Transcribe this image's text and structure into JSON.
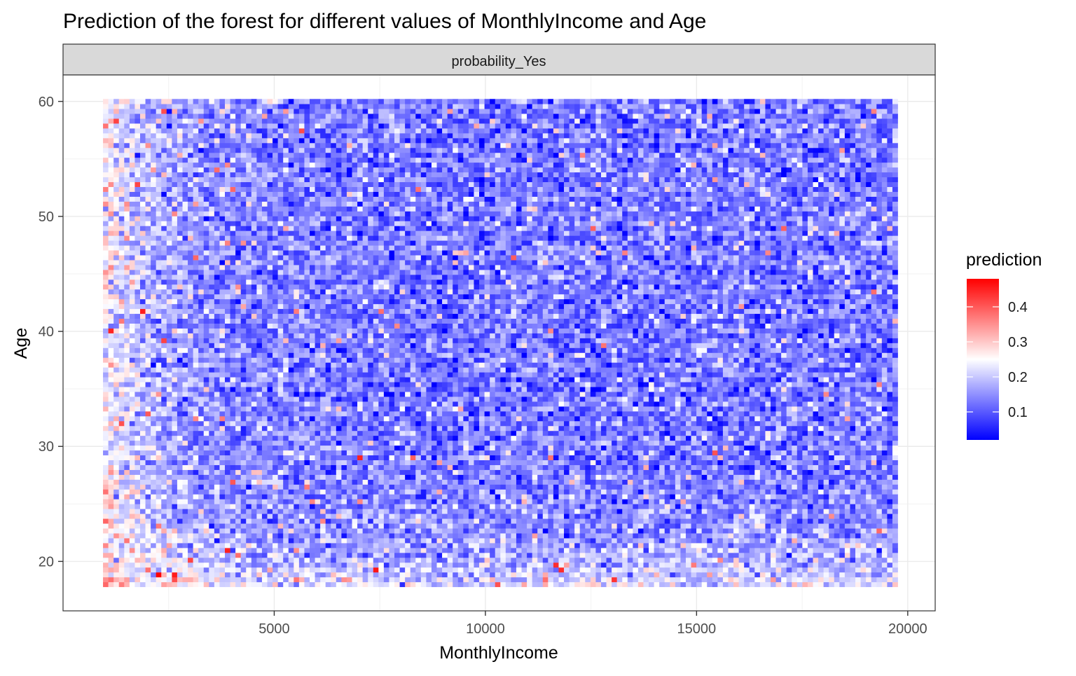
{
  "chart_data": {
    "type": "heatmap",
    "title": "Prediction of the forest for different values of MonthlyIncome and Age",
    "facet_label": "probability_Yes",
    "xlabel": "MonthlyIncome",
    "ylabel": "Age",
    "xlim": [
      0,
      20650
    ],
    "ylim": [
      15.7,
      62.3
    ],
    "x_ticks": [
      5000,
      10000,
      15000,
      20000
    ],
    "x_tick_labels": [
      "5000",
      "10000",
      "15000",
      "20000"
    ],
    "y_ticks": [
      20,
      30,
      40,
      50,
      60
    ],
    "y_tick_labels": [
      "20",
      "30",
      "40",
      "50",
      "60"
    ],
    "x_range": [
      1009,
      19700
    ],
    "y_range": [
      18,
      60
    ],
    "x_cells": 150,
    "y_cells": 100,
    "grid": true,
    "legend": {
      "title": "prediction",
      "position": "right",
      "scale_min": 0.02,
      "scale_max": 0.48,
      "ticks": [
        0.1,
        0.2,
        0.3,
        0.4
      ],
      "tick_labels": [
        "0.1",
        "0.2",
        "0.3",
        "0.4"
      ],
      "low_color": "#0000ff",
      "mid_color": "#ffffff",
      "high_color": "#ff0000",
      "midpoint": 0.25
    },
    "trend": {
      "description_values": "prediction is higher (0.25-0.35) at low MonthlyIncome (<3000) and at Age < 25; elsewhere mostly 0.08-0.18",
      "base": 0.13,
      "low_income_bonus": 0.12,
      "young_age_bonus": 0.09
    },
    "highlight_cells": [
      {
        "x": 7450,
        "y": 19.2,
        "value": 0.46
      },
      {
        "x": 11750,
        "y": 19.2,
        "value": 0.44
      },
      {
        "x": 7050,
        "y": 28.9,
        "value": 0.45
      },
      {
        "x": 2450,
        "y": 39.2,
        "value": 0.42
      },
      {
        "x": 2050,
        "y": 32.8,
        "value": 0.4
      },
      {
        "x": 1250,
        "y": 58.3,
        "value": 0.42
      },
      {
        "x": 8450,
        "y": 52.3,
        "value": 0.38
      },
      {
        "x": 3850,
        "y": 54.3,
        "value": 0.36
      }
    ]
  }
}
